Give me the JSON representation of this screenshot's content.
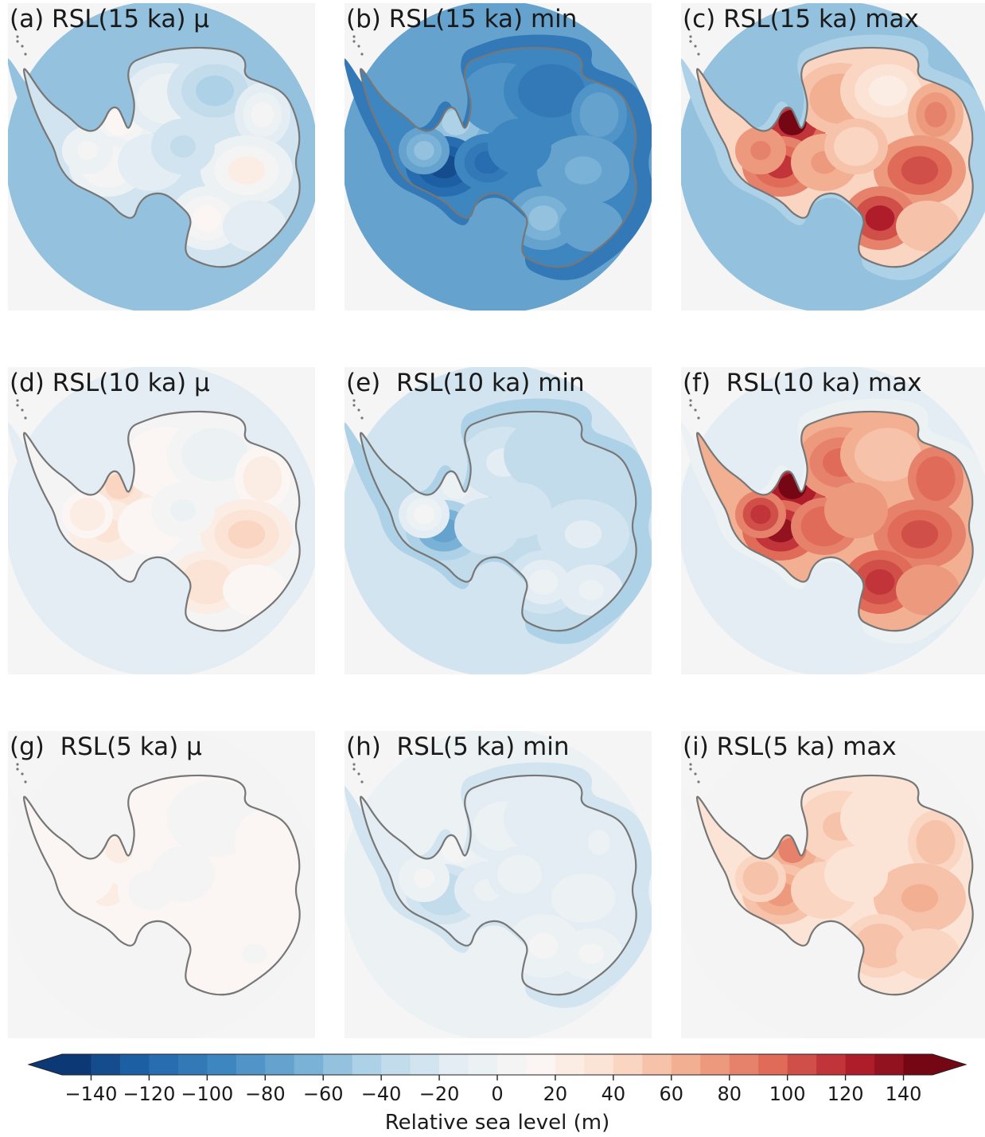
{
  "chart_data": {
    "type": "heatmap",
    "colormap": "RdBu_r diverging (blue negative, red positive)",
    "colors": {
      "background": "#f5f5f5",
      "coastline": "#777777",
      "stops": [
        "#08306b",
        "#1f63a8",
        "#3d85c0",
        "#72acd3",
        "#b8d7e9",
        "#e5eef4",
        "#fbf7f5",
        "#fbddcc",
        "#f2a98a",
        "#df6a57",
        "#b5202e",
        "#67000d"
      ]
    },
    "panels": [
      {
        "id": "a",
        "title": "(a) RSL(15 ka) μ",
        "epoch": "15 ka",
        "statistic": "mean",
        "ocean_value": -60,
        "land_range": [
          -60,
          20
        ]
      },
      {
        "id": "b",
        "title": "(b) RSL(15 ka) min",
        "epoch": "15 ka",
        "statistic": "min",
        "ocean_value": -75,
        "land_range": [
          -145,
          -30
        ]
      },
      {
        "id": "c",
        "title": "(c) RSL(15 ka) max",
        "epoch": "15 ka",
        "statistic": "max",
        "ocean_value": -55,
        "land_range": [
          -30,
          140
        ]
      },
      {
        "id": "d",
        "title": "(d) RSL(10 ka) μ",
        "epoch": "10 ka",
        "statistic": "mean",
        "ocean_value": -18,
        "land_range": [
          -20,
          45
        ]
      },
      {
        "id": "e",
        "title": "(e)  RSL(10 ka) min",
        "epoch": "10 ka",
        "statistic": "min",
        "ocean_value": -25,
        "land_range": [
          -75,
          10
        ]
      },
      {
        "id": "f",
        "title": "(f)  RSL(10 ka) max",
        "epoch": "10 ka",
        "statistic": "max",
        "ocean_value": -15,
        "land_range": [
          0,
          140
        ]
      },
      {
        "id": "g",
        "title": "(g)  RSL(5 ka) μ",
        "epoch": "5 ka",
        "statistic": "mean",
        "ocean_value": 0,
        "land_range": [
          0,
          25
        ]
      },
      {
        "id": "h",
        "title": "(h)  RSL(5 ka) min",
        "epoch": "5 ka",
        "statistic": "min",
        "ocean_value": -8,
        "land_range": [
          -40,
          5
        ]
      },
      {
        "id": "i",
        "title": "(i) RSL(5 ka) max",
        "epoch": "5 ka",
        "statistic": "max",
        "ocean_value": 3,
        "land_range": [
          5,
          80
        ]
      }
    ],
    "colorbar": {
      "label": "Relative sea level (m)",
      "vmin": -150,
      "vmax": 150,
      "extend": "both",
      "ticks": [
        -140,
        -120,
        -100,
        -80,
        -60,
        -40,
        -20,
        0,
        20,
        40,
        60,
        80,
        100,
        120,
        140
      ],
      "tick_labels": [
        "−140",
        "−120",
        "−100",
        "−80",
        "−60",
        "−40",
        "−20",
        "0",
        "20",
        "40",
        "60",
        "80",
        "100",
        "120",
        "140"
      ]
    },
    "xlabel": "",
    "ylabel": "Relative sea level (m)"
  }
}
